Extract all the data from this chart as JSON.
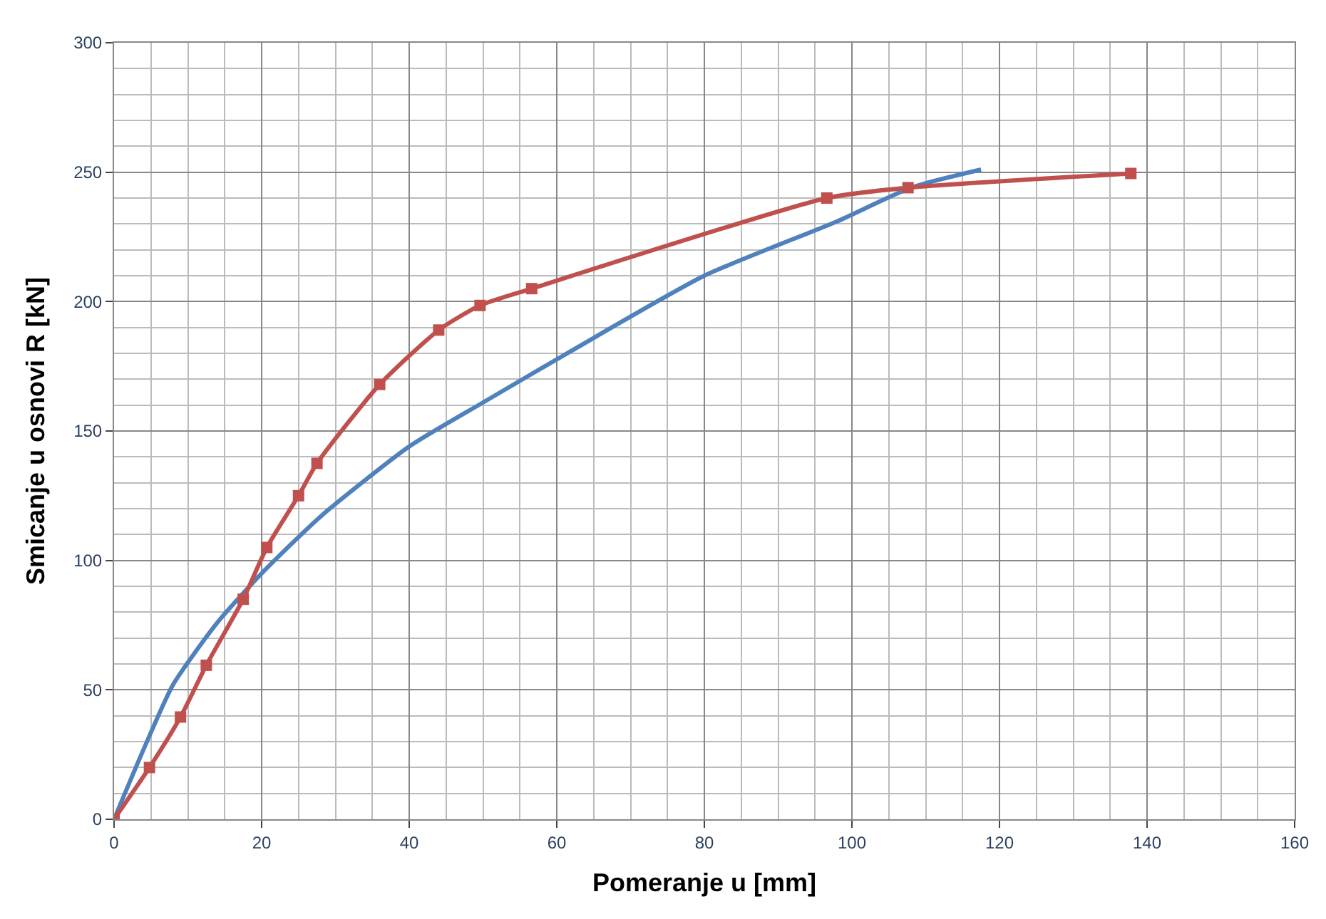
{
  "chart_data": {
    "type": "line",
    "xlabel": "Pomeranje u [mm]",
    "ylabel": "Smicanje u osnovi R [kN]",
    "xlim": [
      0,
      160
    ],
    "xticks": [
      0,
      20,
      40,
      60,
      80,
      100,
      120,
      140,
      160
    ],
    "ylim": [
      0,
      300
    ],
    "yticks": [
      0,
      50,
      100,
      150,
      200,
      250,
      300
    ],
    "grid": true,
    "line_style": "solid",
    "series": [
      {
        "color": "#4f81bd",
        "marker": "none",
        "x": [
          0,
          4,
          8,
          14,
          20,
          28,
          40,
          50,
          62,
          80,
          98,
          108,
          117.5
        ],
        "values": [
          0,
          27,
          52,
          76,
          95,
          117,
          144,
          161,
          181,
          210,
          231,
          244,
          251
        ]
      },
      {
        "color": "#c0504d",
        "marker": "square",
        "x": [
          0,
          4.8,
          9,
          12.5,
          17.5,
          20.7,
          25,
          27.5,
          36,
          44,
          49.6,
          56.6,
          96.6,
          107.6,
          137.8
        ],
        "values": [
          0,
          20,
          39.5,
          59.5,
          85,
          105,
          125,
          137.5,
          168,
          189,
          198.5,
          205,
          240,
          244,
          249.5
        ]
      }
    ]
  }
}
